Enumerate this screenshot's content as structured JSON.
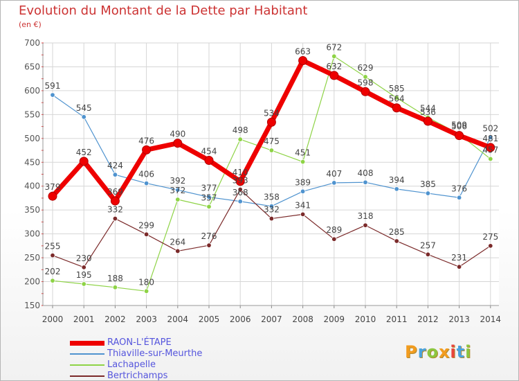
{
  "title": "Evolution du Montant de la Dette par Habitant",
  "unit": "(en €)",
  "logo": {
    "text": "Proxiti",
    "colors": [
      "#f29c1f",
      "#4aa3df",
      "#8cc63f",
      "#f29c1f",
      "#e8453c",
      "#4aa3df",
      "#8cc63f"
    ]
  },
  "chart_data": {
    "type": "line",
    "title": "Evolution du Montant de la Dette par Habitant",
    "ylabel": "(en €)",
    "xlabel": "",
    "x": [
      "2000",
      "2001",
      "2002",
      "2003",
      "2004",
      "2005",
      "2006",
      "2007",
      "2008",
      "2009",
      "2010",
      "2011",
      "2012",
      "2013",
      "2014"
    ],
    "ylim": [
      150,
      700
    ],
    "yticks": [
      150,
      200,
      250,
      300,
      350,
      400,
      450,
      500,
      550,
      600,
      650,
      700
    ],
    "grid": true,
    "legend_position": "bottom-left",
    "series": [
      {
        "name": "RAON-L'ÉTAPE",
        "color": "#ee0000",
        "values": [
          379,
          452,
          369,
          476,
          490,
          454,
          410,
          534,
          663,
          632,
          598,
          564,
          536,
          506,
          481
        ]
      },
      {
        "name": "Thiaville-sur-Meurthe",
        "color": "#4f93cf",
        "values": [
          591,
          545,
          424,
          406,
          392,
          377,
          368,
          358,
          389,
          407,
          408,
          394,
          385,
          376,
          502
        ]
      },
      {
        "name": "Lachapelle",
        "color": "#8ed346",
        "values": [
          202,
          195,
          188,
          180,
          372,
          357,
          498,
          475,
          451,
          672,
          629,
          585,
          544,
          509,
          457
        ]
      },
      {
        "name": "Bertrichamps",
        "color": "#7b2a2a",
        "values": [
          255,
          230,
          332,
          299,
          264,
          276,
          393,
          332,
          341,
          289,
          318,
          285,
          257,
          231,
          275
        ]
      }
    ]
  }
}
